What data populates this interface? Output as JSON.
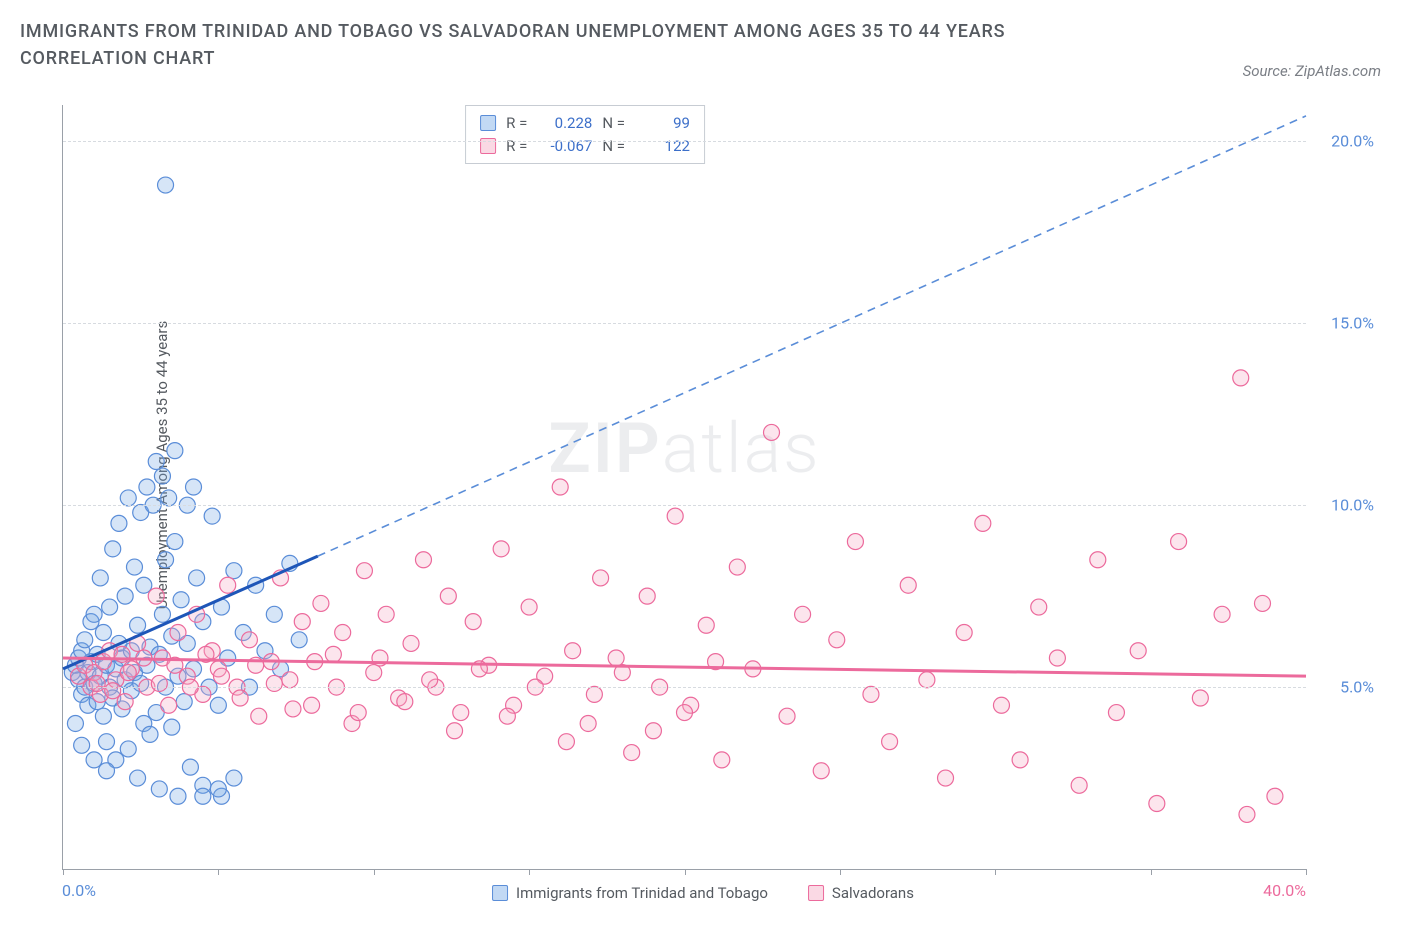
{
  "title": "IMMIGRANTS FROM TRINIDAD AND TOBAGO VS SALVADORAN UNEMPLOYMENT AMONG AGES 35 TO 44 YEARS CORRELATION CHART",
  "source": "Source: ZipAtlas.com",
  "watermark_left": "ZIP",
  "watermark_right": "atlas",
  "ylabel": "Unemployment Among Ages 35 to 44 years",
  "chart": {
    "type": "scatter",
    "xlim": [
      0,
      40
    ],
    "ylim": [
      0,
      21
    ],
    "xtick_positions": [
      0,
      5,
      10,
      15,
      20,
      25,
      30,
      35,
      40
    ],
    "ytick_positions": [
      5,
      10,
      15,
      20
    ],
    "ytick_labels": [
      "5.0%",
      "10.0%",
      "15.0%",
      "20.0%"
    ],
    "x_label_min": "0.0%",
    "x_label_max": "40.0%",
    "background_color": "#ffffff",
    "grid_color": "#d7dbe0",
    "axis_color": "#9aa0a8",
    "marker_radius": 8,
    "series": [
      {
        "name": "Immigrants from Trinidad and Tobago",
        "class": "blue",
        "color_fill": "rgba(120,170,230,0.30)",
        "color_stroke": "#5a8dd8",
        "R": "0.228",
        "N": "99",
        "trend": {
          "x1": 0,
          "y1": 5.5,
          "x2_solid": 8.2,
          "y2_solid": 8.6,
          "x2_dash": 40,
          "y2_dash": 20.7
        },
        "points": [
          [
            0.3,
            5.4
          ],
          [
            0.4,
            5.6
          ],
          [
            0.5,
            5.2
          ],
          [
            0.5,
            5.8
          ],
          [
            0.6,
            4.8
          ],
          [
            0.6,
            6.0
          ],
          [
            0.7,
            5.0
          ],
          [
            0.7,
            6.3
          ],
          [
            0.8,
            5.4
          ],
          [
            0.8,
            4.5
          ],
          [
            0.9,
            6.8
          ],
          [
            0.9,
            5.7
          ],
          [
            1.0,
            5.1
          ],
          [
            1.0,
            7.0
          ],
          [
            1.1,
            4.6
          ],
          [
            1.1,
            5.9
          ],
          [
            1.2,
            5.3
          ],
          [
            1.2,
            8.0
          ],
          [
            1.3,
            4.2
          ],
          [
            1.3,
            6.5
          ],
          [
            1.4,
            5.6
          ],
          [
            1.4,
            3.5
          ],
          [
            1.5,
            7.2
          ],
          [
            1.5,
            5.0
          ],
          [
            1.6,
            4.7
          ],
          [
            1.6,
            8.8
          ],
          [
            1.7,
            5.5
          ],
          [
            1.7,
            3.0
          ],
          [
            1.8,
            6.2
          ],
          [
            1.8,
            9.5
          ],
          [
            1.9,
            4.4
          ],
          [
            1.9,
            5.8
          ],
          [
            2.0,
            7.5
          ],
          [
            2.0,
            5.2
          ],
          [
            2.1,
            3.3
          ],
          [
            2.1,
            10.2
          ],
          [
            2.2,
            6.0
          ],
          [
            2.2,
            4.9
          ],
          [
            2.3,
            5.4
          ],
          [
            2.3,
            8.3
          ],
          [
            2.4,
            2.5
          ],
          [
            2.4,
            6.7
          ],
          [
            2.5,
            5.1
          ],
          [
            2.5,
            9.8
          ],
          [
            2.6,
            4.0
          ],
          [
            2.6,
            7.8
          ],
          [
            2.7,
            5.6
          ],
          [
            2.7,
            10.5
          ],
          [
            2.8,
            3.7
          ],
          [
            2.8,
            6.1
          ],
          [
            2.9,
            10.0
          ],
          [
            3.0,
            4.3
          ],
          [
            3.0,
            11.2
          ],
          [
            3.1,
            5.9
          ],
          [
            3.1,
            2.2
          ],
          [
            3.2,
            7.0
          ],
          [
            3.2,
            10.8
          ],
          [
            3.3,
            5.0
          ],
          [
            3.3,
            8.5
          ],
          [
            3.4,
            10.2
          ],
          [
            3.5,
            3.9
          ],
          [
            3.5,
            6.4
          ],
          [
            3.6,
            9.0
          ],
          [
            3.6,
            11.5
          ],
          [
            3.7,
            5.3
          ],
          [
            3.7,
            2.0
          ],
          [
            3.8,
            7.4
          ],
          [
            3.9,
            4.6
          ],
          [
            4.0,
            10.0
          ],
          [
            4.0,
            6.2
          ],
          [
            4.1,
            2.8
          ],
          [
            4.2,
            5.5
          ],
          [
            4.2,
            10.5
          ],
          [
            4.3,
            8.0
          ],
          [
            4.5,
            2.3
          ],
          [
            4.5,
            6.8
          ],
          [
            4.7,
            5.0
          ],
          [
            4.8,
            9.7
          ],
          [
            5.0,
            4.5
          ],
          [
            5.1,
            2.0
          ],
          [
            5.1,
            7.2
          ],
          [
            5.3,
            5.8
          ],
          [
            5.5,
            8.2
          ],
          [
            5.5,
            2.5
          ],
          [
            5.8,
            6.5
          ],
          [
            6.0,
            5.0
          ],
          [
            6.2,
            7.8
          ],
          [
            6.5,
            6.0
          ],
          [
            6.8,
            7.0
          ],
          [
            7.0,
            5.5
          ],
          [
            7.3,
            8.4
          ],
          [
            7.6,
            6.3
          ],
          [
            3.3,
            18.8
          ],
          [
            0.4,
            4.0
          ],
          [
            0.6,
            3.4
          ],
          [
            1.0,
            3.0
          ],
          [
            1.4,
            2.7
          ],
          [
            4.5,
            2.0
          ],
          [
            5.0,
            2.2
          ]
        ]
      },
      {
        "name": "Salvadorans",
        "class": "pink",
        "color_fill": "rgba(245,170,195,0.30)",
        "color_stroke": "#ec6a9c",
        "R": "-0.067",
        "N": "122",
        "trend": {
          "x1": 0,
          "y1": 5.8,
          "x2": 40,
          "y2": 5.3
        },
        "points": [
          [
            0.5,
            5.3
          ],
          [
            0.7,
            5.6
          ],
          [
            0.9,
            5.0
          ],
          [
            1.0,
            5.4
          ],
          [
            1.2,
            4.8
          ],
          [
            1.3,
            5.7
          ],
          [
            1.5,
            6.0
          ],
          [
            1.7,
            5.2
          ],
          [
            1.9,
            5.9
          ],
          [
            2.0,
            4.6
          ],
          [
            2.2,
            5.5
          ],
          [
            2.4,
            6.2
          ],
          [
            2.7,
            5.0
          ],
          [
            3.0,
            7.5
          ],
          [
            3.2,
            5.8
          ],
          [
            3.4,
            4.5
          ],
          [
            3.7,
            6.5
          ],
          [
            4.0,
            5.3
          ],
          [
            4.3,
            7.0
          ],
          [
            4.5,
            4.8
          ],
          [
            4.8,
            6.0
          ],
          [
            5.0,
            5.5
          ],
          [
            5.3,
            7.8
          ],
          [
            5.6,
            5.0
          ],
          [
            6.0,
            6.3
          ],
          [
            6.3,
            4.2
          ],
          [
            6.7,
            5.7
          ],
          [
            7.0,
            8.0
          ],
          [
            7.3,
            5.2
          ],
          [
            7.7,
            6.8
          ],
          [
            8.0,
            4.5
          ],
          [
            8.3,
            7.3
          ],
          [
            8.7,
            5.9
          ],
          [
            9.0,
            6.5
          ],
          [
            9.3,
            4.0
          ],
          [
            9.7,
            8.2
          ],
          [
            10.0,
            5.4
          ],
          [
            10.4,
            7.0
          ],
          [
            10.8,
            4.7
          ],
          [
            11.2,
            6.2
          ],
          [
            11.6,
            8.5
          ],
          [
            12.0,
            5.0
          ],
          [
            12.4,
            7.5
          ],
          [
            12.8,
            4.3
          ],
          [
            13.2,
            6.8
          ],
          [
            13.7,
            5.6
          ],
          [
            14.1,
            8.8
          ],
          [
            14.5,
            4.5
          ],
          [
            15.0,
            7.2
          ],
          [
            15.5,
            5.3
          ],
          [
            16.0,
            10.5
          ],
          [
            16.4,
            6.0
          ],
          [
            16.9,
            4.0
          ],
          [
            17.3,
            8.0
          ],
          [
            17.8,
            5.8
          ],
          [
            18.3,
            3.2
          ],
          [
            18.8,
            7.5
          ],
          [
            19.2,
            5.0
          ],
          [
            19.7,
            9.7
          ],
          [
            20.2,
            4.5
          ],
          [
            20.7,
            6.7
          ],
          [
            21.2,
            3.0
          ],
          [
            21.7,
            8.3
          ],
          [
            22.2,
            5.5
          ],
          [
            22.8,
            12.0
          ],
          [
            23.3,
            4.2
          ],
          [
            23.8,
            7.0
          ],
          [
            24.4,
            2.7
          ],
          [
            24.9,
            6.3
          ],
          [
            25.5,
            9.0
          ],
          [
            26.0,
            4.8
          ],
          [
            26.6,
            3.5
          ],
          [
            27.2,
            7.8
          ],
          [
            27.8,
            5.2
          ],
          [
            28.4,
            2.5
          ],
          [
            29.0,
            6.5
          ],
          [
            29.6,
            9.5
          ],
          [
            30.2,
            4.5
          ],
          [
            30.8,
            3.0
          ],
          [
            31.4,
            7.2
          ],
          [
            32.0,
            5.8
          ],
          [
            32.7,
            2.3
          ],
          [
            33.3,
            8.5
          ],
          [
            33.9,
            4.3
          ],
          [
            34.6,
            6.0
          ],
          [
            35.2,
            1.8
          ],
          [
            35.9,
            9.0
          ],
          [
            36.6,
            4.7
          ],
          [
            37.3,
            7.0
          ],
          [
            37.9,
            13.5
          ],
          [
            38.1,
            1.5
          ],
          [
            38.6,
            7.3
          ],
          [
            39.0,
            2.0
          ],
          [
            1.1,
            5.1
          ],
          [
            1.6,
            4.9
          ],
          [
            2.1,
            5.4
          ],
          [
            2.6,
            5.8
          ],
          [
            3.1,
            5.1
          ],
          [
            3.6,
            5.6
          ],
          [
            4.1,
            5.0
          ],
          [
            4.6,
            5.9
          ],
          [
            5.1,
            5.3
          ],
          [
            5.7,
            4.7
          ],
          [
            6.2,
            5.6
          ],
          [
            6.8,
            5.1
          ],
          [
            7.4,
            4.4
          ],
          [
            8.1,
            5.7
          ],
          [
            8.8,
            5.0
          ],
          [
            9.5,
            4.3
          ],
          [
            10.2,
            5.8
          ],
          [
            11.0,
            4.6
          ],
          [
            11.8,
            5.2
          ],
          [
            12.6,
            3.8
          ],
          [
            13.4,
            5.5
          ],
          [
            14.3,
            4.2
          ],
          [
            15.2,
            5.0
          ],
          [
            16.2,
            3.5
          ],
          [
            17.1,
            4.8
          ],
          [
            18.0,
            5.4
          ],
          [
            19.0,
            3.8
          ],
          [
            20.0,
            4.3
          ],
          [
            21.0,
            5.7
          ]
        ]
      }
    ]
  },
  "legend": {
    "series1_label": "Immigrants from Trinidad and Tobago",
    "series2_label": "Salvadorans"
  },
  "statbox": {
    "r_label": "R =",
    "n_label": "N ="
  }
}
